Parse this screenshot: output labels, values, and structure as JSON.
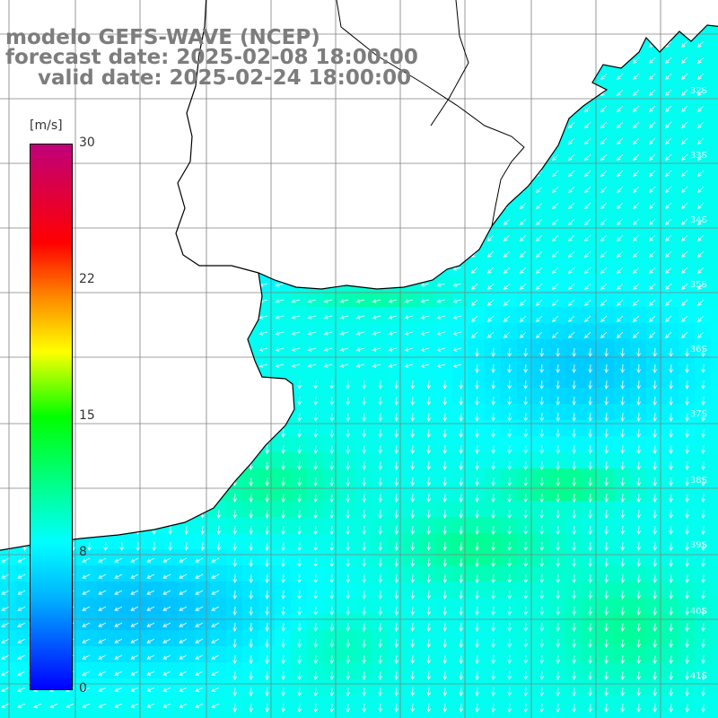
{
  "title": {
    "line1": "modelo GEFS-WAVE (NCEP)",
    "line2": "forecast date: 2025-02-08 18:00:00",
    "line3": "valid date: 2025-02-24 18:00:00"
  },
  "colorbar": {
    "unit": "[m/s]",
    "ticks": [
      "30",
      "22",
      "15",
      "8",
      "0"
    ],
    "tick_values": [
      30,
      22,
      15,
      8,
      0
    ],
    "min": 0,
    "max": 30,
    "colors": [
      "#0000ff",
      "#00b4ff",
      "#00ffff",
      "#00ff00",
      "#ffff00",
      "#ff8800",
      "#ff0000",
      "#c0007a"
    ]
  },
  "map": {
    "variable": "wind speed and direction",
    "land_color": "#ffffff",
    "gridline_color": "#808080",
    "coastline_color": "#000000",
    "arrow_color": "#ffffff",
    "lat_labels": [
      "32S",
      "33S",
      "34S",
      "35S",
      "36S",
      "37S",
      "38S",
      "39S",
      "40S",
      "41S"
    ]
  }
}
